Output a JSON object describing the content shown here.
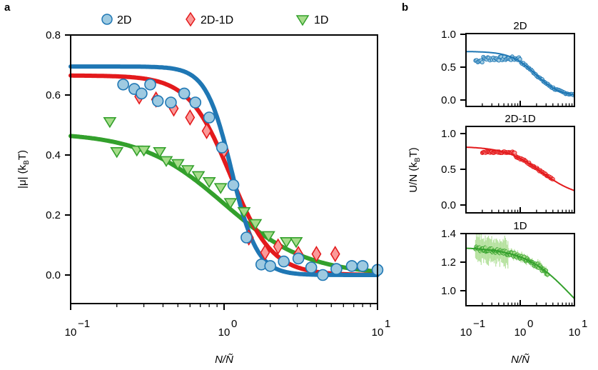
{
  "figure": {
    "panel_a_label": "a",
    "panel_b_label": "b"
  },
  "colors": {
    "2D_line": "#1f77b4",
    "2D_fill": "#9ecae1",
    "2D-1D_line": "#e31a1c",
    "2D-1D_fill": "#fb9a99",
    "1D_line": "#33a02c",
    "1D_fill": "#a6dc8a"
  },
  "chart_data": [
    {
      "type": "scatter",
      "panel": "a",
      "title": "",
      "xlabel": "N/Ñ",
      "ylabel": "|μ| (k_B T)",
      "ylabel_parts": {
        "main": "|μ| (k",
        "sub": "B",
        "end": "T)"
      },
      "xscale": "log",
      "xlim": [
        0.1,
        10
      ],
      "ylim": [
        -0.11,
        0.8
      ],
      "xticks": [
        {
          "v": 0.1,
          "base": "10",
          "exp": "−1"
        },
        {
          "v": 1,
          "base": "10",
          "exp": "0"
        },
        {
          "v": 10,
          "base": "10",
          "exp": "1"
        }
      ],
      "yticks": [
        {
          "v": 0.0,
          "label": "0.0"
        },
        {
          "v": 0.2,
          "label": "0.2"
        },
        {
          "v": 0.4,
          "label": "0.4"
        },
        {
          "v": 0.6,
          "label": "0.6"
        },
        {
          "v": 0.8,
          "label": "0.8"
        }
      ],
      "grid": false,
      "legend": {
        "placement": "top",
        "entries": [
          {
            "label": "2D",
            "marker": "circle",
            "series": "2D"
          },
          {
            "label": "2D-1D",
            "marker": "diamond",
            "series": "2D-1D"
          },
          {
            "label": "1D",
            "marker": "triangle-down",
            "series": "1D"
          }
        ]
      },
      "series": [
        {
          "name": "2D",
          "marker": "circle",
          "x": [
            0.22,
            0.26,
            0.29,
            0.33,
            0.37,
            0.45,
            0.55,
            0.65,
            0.8,
            0.97,
            1.15,
            1.4,
            1.75,
            2.0,
            2.45,
            3.05,
            3.7,
            4.4,
            5.4,
            6.8,
            8.0,
            10.0
          ],
          "y": [
            0.635,
            0.62,
            0.605,
            0.635,
            0.58,
            0.575,
            0.605,
            0.575,
            0.525,
            0.425,
            0.3,
            0.125,
            0.035,
            0.03,
            0.045,
            0.055,
            0.025,
            0.0,
            0.02,
            0.03,
            0.03,
            0.017
          ],
          "fit": {
            "y0": 0.695,
            "x0": 1.12,
            "n": 5.2
          }
        },
        {
          "name": "2D-1D",
          "marker": "diamond",
          "x": [
            0.28,
            0.36,
            0.47,
            0.6,
            0.77,
            1.0,
            1.45,
            1.85,
            2.25,
            3.05,
            4.0,
            5.3
          ],
          "y": [
            0.595,
            0.585,
            0.555,
            0.525,
            0.48,
            0.415,
            0.125,
            0.075,
            0.095,
            0.07,
            0.07,
            0.07
          ],
          "fit": {
            "y0": 0.665,
            "x0": 1.1,
            "n": 3.2
          }
        },
        {
          "name": "1D",
          "marker": "triangle-down",
          "x": [
            0.18,
            0.2,
            0.27,
            0.3,
            0.38,
            0.42,
            0.5,
            0.58,
            0.68,
            0.8,
            0.95,
            1.1,
            1.35,
            1.6,
            1.95,
            2.55,
            2.95
          ],
          "y": [
            0.51,
            0.41,
            0.415,
            0.415,
            0.41,
            0.38,
            0.37,
            0.35,
            0.33,
            0.31,
            0.29,
            0.24,
            0.21,
            0.17,
            0.13,
            0.11,
            0.11
          ],
          "fit": {
            "y0": 0.475,
            "x0": 1.0,
            "n": 1.6
          }
        }
      ]
    },
    {
      "type": "scatter",
      "panel": "b-2D",
      "title": "2D",
      "xscale": "log",
      "xlim": [
        0.1,
        10
      ],
      "ylim": [
        -0.1,
        1.0
      ],
      "yticks": [
        {
          "v": 0.0,
          "label": "0.0"
        },
        {
          "v": 0.5,
          "label": "0.5"
        },
        {
          "v": 1.0,
          "label": "1.0"
        }
      ],
      "series": [
        {
          "name": "2D",
          "x_range": [
            0.15,
            10
          ],
          "y_start": 0.6,
          "y_plateau": 0.63,
          "y_end": 0.13,
          "fit": {
            "y_high": 0.74,
            "y_low": 0.05,
            "x0": 1.9,
            "n": 1.9
          }
        }
      ]
    },
    {
      "type": "scatter",
      "panel": "b-2D-1D",
      "title": "2D-1D",
      "ylabel": "U/N (k_B T)",
      "ylabel_parts": {
        "main": "U/N (k",
        "sub": "B",
        "end": "T)"
      },
      "xscale": "log",
      "xlim": [
        0.1,
        10
      ],
      "ylim": [
        -0.1,
        1.0
      ],
      "yticks": [
        {
          "v": 0.0,
          "label": "0.0"
        },
        {
          "v": 0.5,
          "label": "0.5"
        },
        {
          "v": 1.0,
          "label": "1.0"
        }
      ],
      "series": [
        {
          "name": "2D-1D",
          "x_range": [
            0.2,
            4.0
          ],
          "y_start": 0.74,
          "y_end": 0.32,
          "fit": {
            "y_high": 0.82,
            "y_low": 0.1,
            "x0": 2.5,
            "n": 1.3
          }
        }
      ]
    },
    {
      "type": "scatter",
      "panel": "b-1D",
      "title": "1D",
      "xlabel": "N/Ñ",
      "xscale": "log",
      "xlim": [
        0.1,
        10
      ],
      "ylim": [
        0.9,
        1.4
      ],
      "xticks": [
        {
          "v": 0.1,
          "base": "10",
          "exp": "−1"
        },
        {
          "v": 1,
          "base": "10",
          "exp": "0"
        },
        {
          "v": 10,
          "base": "10",
          "exp": "1"
        }
      ],
      "yticks": [
        {
          "v": 1.0,
          "label": "1.0"
        },
        {
          "v": 1.2,
          "label": "1.2"
        },
        {
          "v": 1.4,
          "label": "1.4"
        }
      ],
      "series": [
        {
          "name": "1D",
          "x_range": [
            0.15,
            3.2
          ],
          "y_start": 1.31,
          "y_end": 1.05,
          "has_error_bars": true,
          "fit": {
            "y_high": 1.305,
            "y_low": 0.62,
            "x0": 9.0,
            "n": 1.0
          }
        }
      ]
    }
  ]
}
